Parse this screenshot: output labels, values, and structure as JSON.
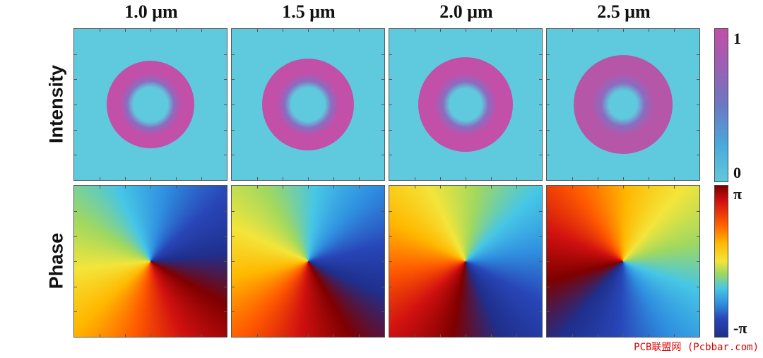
{
  "columns": [
    "1.0 μm",
    "1.5 μm",
    "2.0 μm",
    "2.5 μm"
  ],
  "rows": [
    "Intensity",
    "Phase"
  ],
  "colorbar_intensity": {
    "max": "1",
    "min": "0"
  },
  "colorbar_phase": {
    "max": "π",
    "min": "-π"
  },
  "watermark": "PCB联盟网 (Pcbbar.com)",
  "colors": {
    "intensity_background": "#5fc9dd",
    "intensity_peak": "#c24fa8"
  },
  "phase_rotation_deg": [
    120,
    150,
    190,
    255
  ]
}
